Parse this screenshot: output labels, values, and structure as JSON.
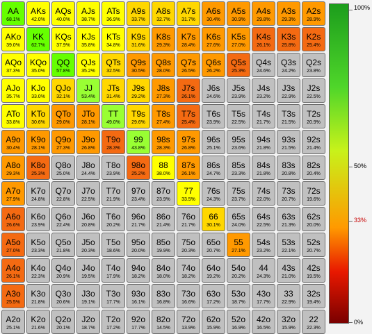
{
  "grid": {
    "colors": {
      "light_green": "#99ff33",
      "green": "#66ff00",
      "yellow": "#ffff00",
      "gold": "#ffd700",
      "orange": "#ff9900",
      "dark_orange": "#f46a12",
      "gray": "#c0c0c0"
    },
    "rows": [
      [
        {
          "hand": "AA",
          "pct": "68.1%",
          "color": "#66ff00"
        },
        {
          "hand": "AKs",
          "pct": "42.0%",
          "color": "#ffff00"
        },
        {
          "hand": "AQs",
          "pct": "40.0%",
          "color": "#ffff00"
        },
        {
          "hand": "AJs",
          "pct": "38.7%",
          "color": "#ffff00"
        },
        {
          "hand": "ATs",
          "pct": "36.9%",
          "color": "#ffff00"
        },
        {
          "hand": "A9s",
          "pct": "33.7%",
          "color": "#ffd700"
        },
        {
          "hand": "A8s",
          "pct": "32.7%",
          "color": "#ffd700"
        },
        {
          "hand": "A7s",
          "pct": "31.7%",
          "color": "#ffd700"
        },
        {
          "hand": "A6s",
          "pct": "30.4%",
          "color": "#ff9900"
        },
        {
          "hand": "A5s",
          "pct": "30.9%",
          "color": "#ff9900"
        },
        {
          "hand": "A4s",
          "pct": "29.8%",
          "color": "#ff9900"
        },
        {
          "hand": "A3s",
          "pct": "29.3%",
          "color": "#ff9900"
        },
        {
          "hand": "A2s",
          "pct": "28.9%",
          "color": "#ff9900"
        }
      ],
      [
        {
          "hand": "AKo",
          "pct": "39.0%",
          "color": "#ffff00"
        },
        {
          "hand": "KK",
          "pct": "62.7%",
          "color": "#66ff00"
        },
        {
          "hand": "KQs",
          "pct": "37.9%",
          "color": "#ffff00"
        },
        {
          "hand": "KJs",
          "pct": "35.8%",
          "color": "#ffff00"
        },
        {
          "hand": "KTs",
          "pct": "34.8%",
          "color": "#ffff00"
        },
        {
          "hand": "K9s",
          "pct": "31.6%",
          "color": "#ffd700"
        },
        {
          "hand": "K8s",
          "pct": "29.3%",
          "color": "#ff9900"
        },
        {
          "hand": "K7s",
          "pct": "28.4%",
          "color": "#ff9900"
        },
        {
          "hand": "K6s",
          "pct": "27.6%",
          "color": "#ff9900"
        },
        {
          "hand": "K5s",
          "pct": "27.0%",
          "color": "#ff9900"
        },
        {
          "hand": "K4s",
          "pct": "26.1%",
          "color": "#f46a12"
        },
        {
          "hand": "K3s",
          "pct": "25.8%",
          "color": "#f46a12"
        },
        {
          "hand": "K2s",
          "pct": "25.4%",
          "color": "#f46a12"
        }
      ],
      [
        {
          "hand": "AQo",
          "pct": "37.3%",
          "color": "#ffff00"
        },
        {
          "hand": "KQo",
          "pct": "35.0%",
          "color": "#ffff00"
        },
        {
          "hand": "QQ",
          "pct": "57.8%",
          "color": "#66ff00"
        },
        {
          "hand": "QJs",
          "pct": "35.2%",
          "color": "#ffff00"
        },
        {
          "hand": "QTs",
          "pct": "32.5%",
          "color": "#ffd700"
        },
        {
          "hand": "Q9s",
          "pct": "30.5%",
          "color": "#ff9900"
        },
        {
          "hand": "Q8s",
          "pct": "28.0%",
          "color": "#ff9900"
        },
        {
          "hand": "Q7s",
          "pct": "26.5%",
          "color": "#ff9900"
        },
        {
          "hand": "Q6s",
          "pct": "26.2%",
          "color": "#ff9900"
        },
        {
          "hand": "Q5s",
          "pct": "25.3%",
          "color": "#f46a12"
        },
        {
          "hand": "Q4s",
          "pct": "24.6%",
          "color": "#c0c0c0"
        },
        {
          "hand": "Q3s",
          "pct": "24.2%",
          "color": "#c0c0c0"
        },
        {
          "hand": "Q2s",
          "pct": "23.8%",
          "color": "#c0c0c0"
        }
      ],
      [
        {
          "hand": "AJo",
          "pct": "35.7%",
          "color": "#ffff00"
        },
        {
          "hand": "KJo",
          "pct": "33.0%",
          "color": "#ffff00"
        },
        {
          "hand": "QJo",
          "pct": "32.1%",
          "color": "#ffd700"
        },
        {
          "hand": "JJ",
          "pct": "53.4%",
          "color": "#99ff33"
        },
        {
          "hand": "JTs",
          "pct": "31.4%",
          "color": "#ffd700"
        },
        {
          "hand": "J9s",
          "pct": "29.2%",
          "color": "#ffd700"
        },
        {
          "hand": "J8s",
          "pct": "27.3%",
          "color": "#ff9900"
        },
        {
          "hand": "J7s",
          "pct": "26.1%",
          "color": "#f46a12"
        },
        {
          "hand": "J6s",
          "pct": "24.6%",
          "color": "#c0c0c0"
        },
        {
          "hand": "J5s",
          "pct": "23.9%",
          "color": "#c0c0c0"
        },
        {
          "hand": "J4s",
          "pct": "23.2%",
          "color": "#c0c0c0"
        },
        {
          "hand": "J3s",
          "pct": "22.9%",
          "color": "#c0c0c0"
        },
        {
          "hand": "J2s",
          "pct": "22.5%",
          "color": "#c0c0c0"
        }
      ],
      [
        {
          "hand": "ATo",
          "pct": "33.8%",
          "color": "#ffff00"
        },
        {
          "hand": "KTo",
          "pct": "30.6%",
          "color": "#ffd700"
        },
        {
          "hand": "QTo",
          "pct": "29.0%",
          "color": "#ff9900"
        },
        {
          "hand": "JTo",
          "pct": "28.1%",
          "color": "#ff9900"
        },
        {
          "hand": "TT",
          "pct": "49.0%",
          "color": "#99ff33"
        },
        {
          "hand": "T9s",
          "pct": "29.6%",
          "color": "#ffd700"
        },
        {
          "hand": "T8s",
          "pct": "27.4%",
          "color": "#ff9900"
        },
        {
          "hand": "T7s",
          "pct": "25.4%",
          "color": "#f46a12"
        },
        {
          "hand": "T6s",
          "pct": "23.9%",
          "color": "#c0c0c0"
        },
        {
          "hand": "T5s",
          "pct": "22.5%",
          "color": "#c0c0c0"
        },
        {
          "hand": "T4s",
          "pct": "21.7%",
          "color": "#c0c0c0"
        },
        {
          "hand": "T3s",
          "pct": "21.5%",
          "color": "#c0c0c0"
        },
        {
          "hand": "T2s",
          "pct": "20.9%",
          "color": "#c0c0c0"
        }
      ],
      [
        {
          "hand": "A9o",
          "pct": "30.4%",
          "color": "#ff9900"
        },
        {
          "hand": "K9o",
          "pct": "28.1%",
          "color": "#ff9900"
        },
        {
          "hand": "Q9o",
          "pct": "27.3%",
          "color": "#ff9900"
        },
        {
          "hand": "J9o",
          "pct": "26.8%",
          "color": "#ff9900"
        },
        {
          "hand": "T9o",
          "pct": "28.3%",
          "color": "#f46a12"
        },
        {
          "hand": "99",
          "pct": "43.8%",
          "color": "#99ff33"
        },
        {
          "hand": "98s",
          "pct": "28.3%",
          "color": "#ff9900"
        },
        {
          "hand": "97s",
          "pct": "26.8%",
          "color": "#ff9900"
        },
        {
          "hand": "96s",
          "pct": "25.1%",
          "color": "#c0c0c0"
        },
        {
          "hand": "95s",
          "pct": "23.6%",
          "color": "#c0c0c0"
        },
        {
          "hand": "94s",
          "pct": "21.8%",
          "color": "#c0c0c0"
        },
        {
          "hand": "93s",
          "pct": "21.5%",
          "color": "#c0c0c0"
        },
        {
          "hand": "92s",
          "pct": "21.4%",
          "color": "#c0c0c0"
        }
      ],
      [
        {
          "hand": "A8o",
          "pct": "29.3%",
          "color": "#ff9900"
        },
        {
          "hand": "K8o",
          "pct": "25.3%",
          "color": "#f46a12"
        },
        {
          "hand": "Q8o",
          "pct": "25.0%",
          "color": "#c0c0c0"
        },
        {
          "hand": "J8o",
          "pct": "24.4%",
          "color": "#c0c0c0"
        },
        {
          "hand": "T8o",
          "pct": "23.9%",
          "color": "#c0c0c0"
        },
        {
          "hand": "98o",
          "pct": "25.2%",
          "color": "#f46a12"
        },
        {
          "hand": "88",
          "pct": "38.0%",
          "color": "#ffff00"
        },
        {
          "hand": "87s",
          "pct": "26.1%",
          "color": "#ff9900"
        },
        {
          "hand": "86s",
          "pct": "24.7%",
          "color": "#c0c0c0"
        },
        {
          "hand": "85s",
          "pct": "23.3%",
          "color": "#c0c0c0"
        },
        {
          "hand": "84s",
          "pct": "21.8%",
          "color": "#c0c0c0"
        },
        {
          "hand": "83s",
          "pct": "20.8%",
          "color": "#c0c0c0"
        },
        {
          "hand": "82s",
          "pct": "20.4%",
          "color": "#c0c0c0"
        }
      ],
      [
        {
          "hand": "A7o",
          "pct": "27.9%",
          "color": "#ff9900"
        },
        {
          "hand": "K7o",
          "pct": "24.8%",
          "color": "#c0c0c0"
        },
        {
          "hand": "Q7o",
          "pct": "22.8%",
          "color": "#c0c0c0"
        },
        {
          "hand": "J7o",
          "pct": "22.5%",
          "color": "#c0c0c0"
        },
        {
          "hand": "T7o",
          "pct": "21.9%",
          "color": "#c0c0c0"
        },
        {
          "hand": "97o",
          "pct": "23.4%",
          "color": "#c0c0c0"
        },
        {
          "hand": "87o",
          "pct": "23.9%",
          "color": "#c0c0c0"
        },
        {
          "hand": "77",
          "pct": "33.5%",
          "color": "#ffff00"
        },
        {
          "hand": "76s",
          "pct": "24.3%",
          "color": "#c0c0c0"
        },
        {
          "hand": "75s",
          "pct": "23.7%",
          "color": "#c0c0c0"
        },
        {
          "hand": "74s",
          "pct": "22.0%",
          "color": "#c0c0c0"
        },
        {
          "hand": "73s",
          "pct": "20.7%",
          "color": "#c0c0c0"
        },
        {
          "hand": "72s",
          "pct": "19.6%",
          "color": "#c0c0c0"
        }
      ],
      [
        {
          "hand": "A6o",
          "pct": "26.6%",
          "color": "#f46a12"
        },
        {
          "hand": "K6o",
          "pct": "23.9%",
          "color": "#c0c0c0"
        },
        {
          "hand": "Q6o",
          "pct": "22.4%",
          "color": "#c0c0c0"
        },
        {
          "hand": "J6o",
          "pct": "20.8%",
          "color": "#c0c0c0"
        },
        {
          "hand": "T6o",
          "pct": "20.2%",
          "color": "#c0c0c0"
        },
        {
          "hand": "96o",
          "pct": "21.7%",
          "color": "#c0c0c0"
        },
        {
          "hand": "86o",
          "pct": "21.4%",
          "color": "#c0c0c0"
        },
        {
          "hand": "76o",
          "pct": "21.7%",
          "color": "#c0c0c0"
        },
        {
          "hand": "66",
          "pct": "30.1%",
          "color": "#ffd700"
        },
        {
          "hand": "65s",
          "pct": "24.0%",
          "color": "#c0c0c0"
        },
        {
          "hand": "64s",
          "pct": "22.5%",
          "color": "#c0c0c0"
        },
        {
          "hand": "63s",
          "pct": "21.3%",
          "color": "#c0c0c0"
        },
        {
          "hand": "62s",
          "pct": "20.0%",
          "color": "#c0c0c0"
        }
      ],
      [
        {
          "hand": "A5o",
          "pct": "27.0%",
          "color": "#f46a12"
        },
        {
          "hand": "K5o",
          "pct": "23.3%",
          "color": "#c0c0c0"
        },
        {
          "hand": "Q5o",
          "pct": "21.8%",
          "color": "#c0c0c0"
        },
        {
          "hand": "J5o",
          "pct": "20.3%",
          "color": "#c0c0c0"
        },
        {
          "hand": "T5o",
          "pct": "18.6%",
          "color": "#c0c0c0"
        },
        {
          "hand": "95o",
          "pct": "20.0%",
          "color": "#c0c0c0"
        },
        {
          "hand": "85o",
          "pct": "19.9%",
          "color": "#c0c0c0"
        },
        {
          "hand": "75o",
          "pct": "20.3%",
          "color": "#c0c0c0"
        },
        {
          "hand": "65o",
          "pct": "20.7%",
          "color": "#c0c0c0"
        },
        {
          "hand": "55",
          "pct": "27.1%",
          "color": "#ff9900"
        },
        {
          "hand": "54s",
          "pct": "23.2%",
          "color": "#c0c0c0"
        },
        {
          "hand": "53s",
          "pct": "22.1%",
          "color": "#c0c0c0"
        },
        {
          "hand": "52s",
          "pct": "20.7%",
          "color": "#c0c0c0"
        }
      ],
      [
        {
          "hand": "A4o",
          "pct": "26.1%",
          "color": "#f46a12"
        },
        {
          "hand": "K4o",
          "pct": "22.3%",
          "color": "#c0c0c0"
        },
        {
          "hand": "Q4o",
          "pct": "20.9%",
          "color": "#c0c0c0"
        },
        {
          "hand": "J4o",
          "pct": "19.5%",
          "color": "#c0c0c0"
        },
        {
          "hand": "T4o",
          "pct": "17.9%",
          "color": "#c0c0c0"
        },
        {
          "hand": "94o",
          "pct": "18.2%",
          "color": "#c0c0c0"
        },
        {
          "hand": "84o",
          "pct": "18.0%",
          "color": "#c0c0c0"
        },
        {
          "hand": "74o",
          "pct": "18.2%",
          "color": "#c0c0c0"
        },
        {
          "hand": "64o",
          "pct": "19.2%",
          "color": "#c0c0c0"
        },
        {
          "hand": "54o",
          "pct": "20.2%",
          "color": "#c0c0c0"
        },
        {
          "hand": "44",
          "pct": "24.3%",
          "color": "#c0c0c0"
        },
        {
          "hand": "43s",
          "pct": "21.0%",
          "color": "#c0c0c0"
        },
        {
          "hand": "42s",
          "pct": "19.5%",
          "color": "#c0c0c0"
        }
      ],
      [
        {
          "hand": "A3o",
          "pct": "25.5%",
          "color": "#f46a12"
        },
        {
          "hand": "K3o",
          "pct": "21.8%",
          "color": "#c0c0c0"
        },
        {
          "hand": "Q3o",
          "pct": "20.6%",
          "color": "#c0c0c0"
        },
        {
          "hand": "J3o",
          "pct": "19.1%",
          "color": "#c0c0c0"
        },
        {
          "hand": "T3o",
          "pct": "17.7%",
          "color": "#c0c0c0"
        },
        {
          "hand": "93o",
          "pct": "16.1%",
          "color": "#c0c0c0"
        },
        {
          "hand": "83o",
          "pct": "16.8%",
          "color": "#c0c0c0"
        },
        {
          "hand": "73o",
          "pct": "16.6%",
          "color": "#c0c0c0"
        },
        {
          "hand": "63o",
          "pct": "17.2%",
          "color": "#c0c0c0"
        },
        {
          "hand": "53o",
          "pct": "18.7%",
          "color": "#c0c0c0"
        },
        {
          "hand": "43o",
          "pct": "17.7%",
          "color": "#c0c0c0"
        },
        {
          "hand": "33",
          "pct": "22.9%",
          "color": "#c0c0c0"
        },
        {
          "hand": "32s",
          "pct": "19.4%",
          "color": "#c0c0c0"
        }
      ],
      [
        {
          "hand": "A2o",
          "pct": "25.1%",
          "color": "#c0c0c0"
        },
        {
          "hand": "K2o",
          "pct": "21.6%",
          "color": "#c0c0c0"
        },
        {
          "hand": "Q2o",
          "pct": "20.1%",
          "color": "#c0c0c0"
        },
        {
          "hand": "J2o",
          "pct": "18.7%",
          "color": "#c0c0c0"
        },
        {
          "hand": "T2o",
          "pct": "17.2%",
          "color": "#c0c0c0"
        },
        {
          "hand": "92o",
          "pct": "17.7%",
          "color": "#c0c0c0"
        },
        {
          "hand": "82o",
          "pct": "14.5%",
          "color": "#c0c0c0"
        },
        {
          "hand": "72o",
          "pct": "13.9%",
          "color": "#c0c0c0"
        },
        {
          "hand": "62o",
          "pct": "15.9%",
          "color": "#c0c0c0"
        },
        {
          "hand": "52o",
          "pct": "16.9%",
          "color": "#c0c0c0"
        },
        {
          "hand": "42o",
          "pct": "16.5%",
          "color": "#c0c0c0"
        },
        {
          "hand": "32o",
          "pct": "15.9%",
          "color": "#c0c0c0"
        },
        {
          "hand": "22",
          "pct": "22.3%",
          "color": "#c0c0c0"
        }
      ]
    ]
  },
  "legend": {
    "gradient_stops": [
      "#1c9d1c",
      "#4fd62a",
      "#c8f21a",
      "#ff9a00",
      "#e81800",
      "#7a0000"
    ],
    "labels": [
      {
        "text": "100%",
        "value": 100,
        "color": "#000000"
      },
      {
        "text": "50%",
        "value": 50,
        "color": "#000000"
      },
      {
        "text": "33%",
        "value": 33,
        "color": "#c80000"
      },
      {
        "text": "0%",
        "value": 0,
        "color": "#000000"
      }
    ]
  }
}
